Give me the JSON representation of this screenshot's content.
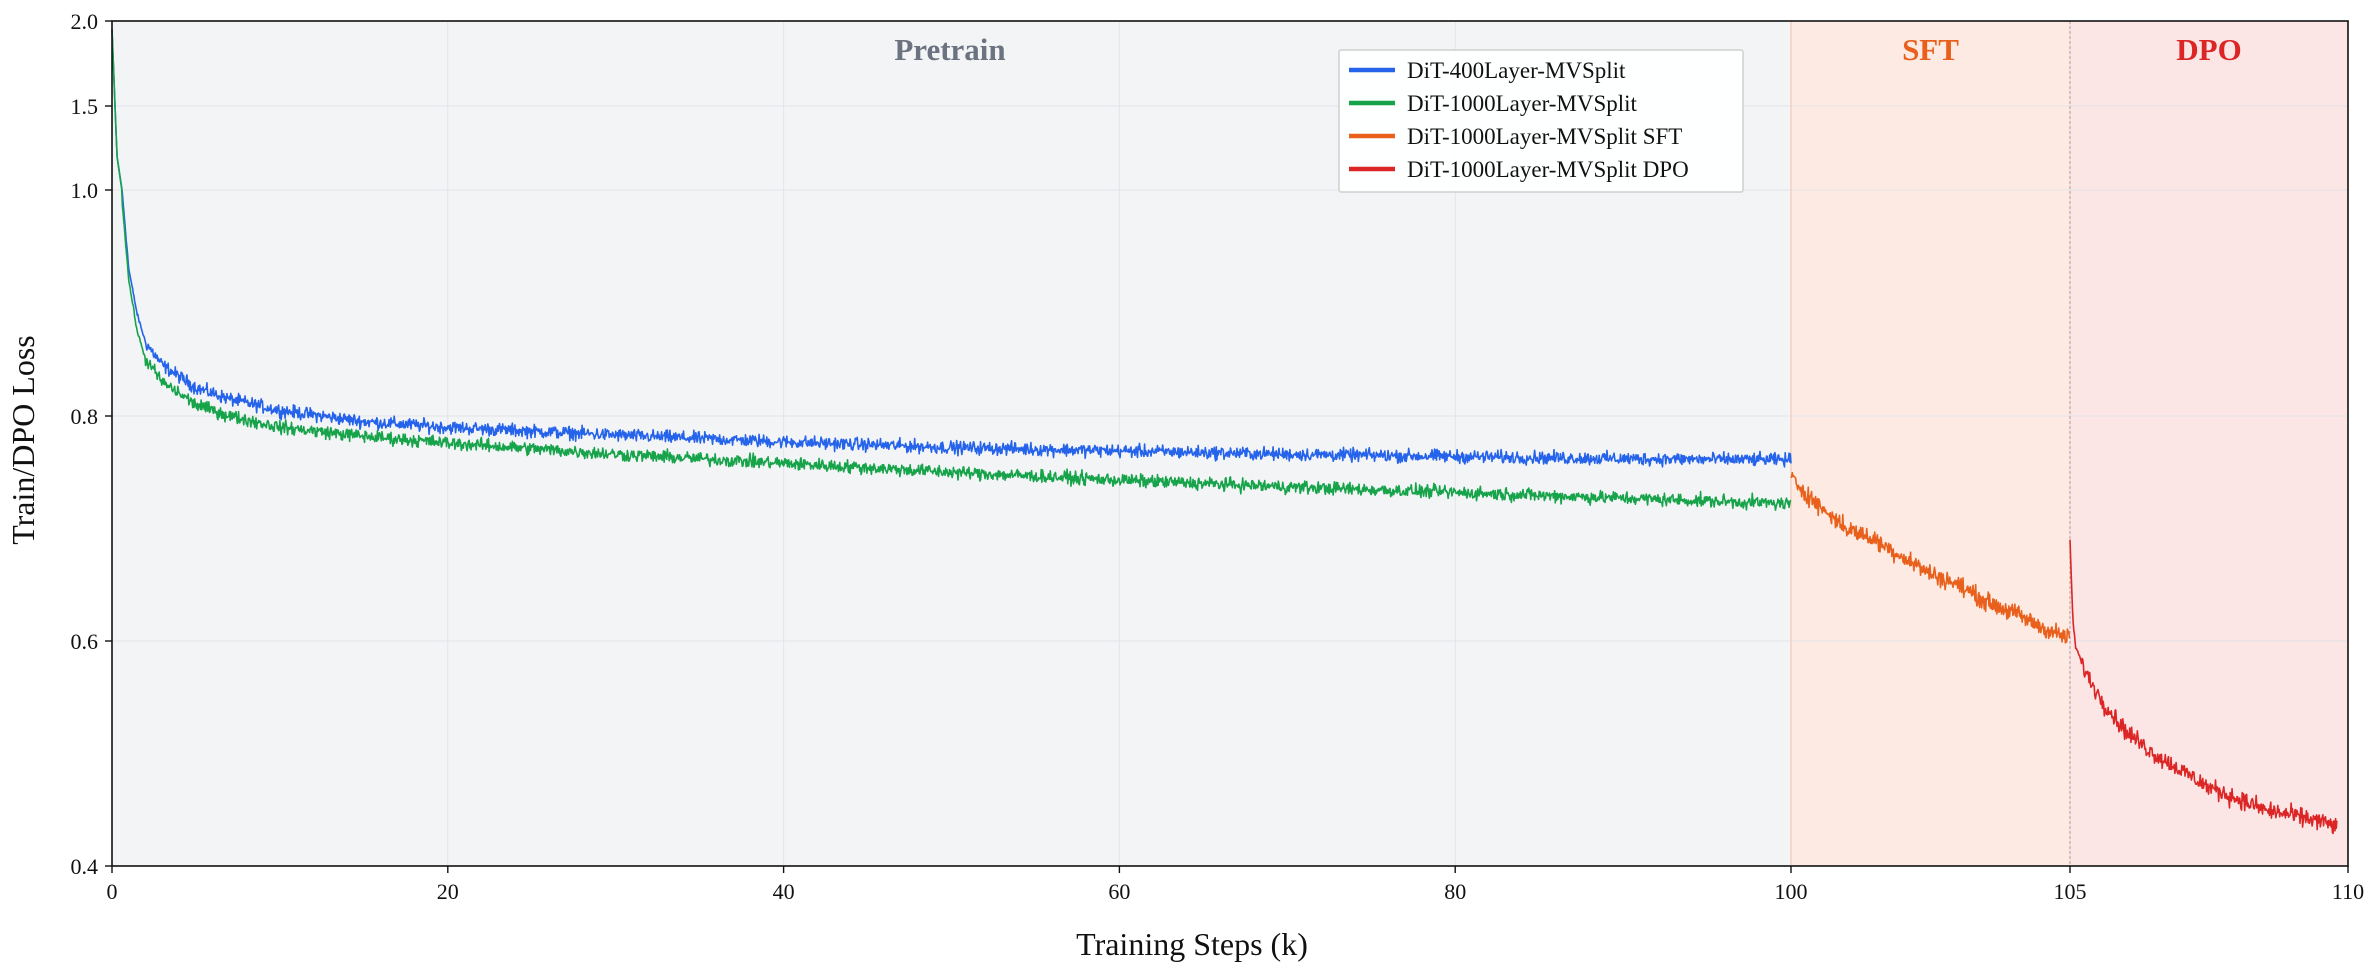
{
  "chart_data": {
    "type": "line",
    "title": "",
    "xlabel": "Training Steps (k)",
    "ylabel": "Train/DPO Loss",
    "x_ticks": [
      {
        "value": 0,
        "label": "0"
      },
      {
        "value": 20,
        "label": "20"
      },
      {
        "value": 40,
        "label": "40"
      },
      {
        "value": 60,
        "label": "60"
      },
      {
        "value": 80,
        "label": "80"
      },
      {
        "value": 100,
        "label": "100"
      },
      {
        "value": 105,
        "label": "105"
      },
      {
        "value": 110,
        "label": "110"
      }
    ],
    "y_ticks": [
      {
        "value": 0.4,
        "label": "0.4"
      },
      {
        "value": 0.6,
        "label": "0.6"
      },
      {
        "value": 0.8,
        "label": "0.8"
      },
      {
        "value": 1.0,
        "label": "1.0"
      },
      {
        "value": 1.5,
        "label": "1.5"
      },
      {
        "value": 2.0,
        "label": "2.0"
      }
    ],
    "ylim": [
      0.4,
      2.0
    ],
    "grid": true,
    "legend_position": "top-center",
    "phases": [
      {
        "name": "Pretrain",
        "range": [
          0,
          100
        ],
        "color": "#6b7280",
        "fill": "#f3f4f6"
      },
      {
        "name": "SFT",
        "range": [
          100,
          105
        ],
        "color": "#e8601c",
        "fill": "#fdebe3"
      },
      {
        "name": "DPO",
        "range": [
          105,
          110
        ],
        "color": "#dc2626",
        "fill": "#fbe5e5"
      }
    ],
    "series": [
      {
        "name": "DiT-400Layer-MVSplit",
        "color": "#2563eb",
        "x": [
          0,
          0.3,
          0.6,
          1,
          1.5,
          2,
          3,
          5,
          7,
          10,
          15,
          20,
          30,
          40,
          50,
          60,
          70,
          80,
          90,
          100
        ],
        "y": [
          1.95,
          1.2,
          1.0,
          0.93,
          0.89,
          0.865,
          0.845,
          0.825,
          0.815,
          0.805,
          0.795,
          0.79,
          0.783,
          0.777,
          0.772,
          0.769,
          0.766,
          0.764,
          0.762,
          0.761
        ]
      },
      {
        "name": "DiT-1000Layer-MVSplit",
        "color": "#16a34a",
        "x": [
          0,
          0.3,
          0.6,
          1,
          1.5,
          2,
          3,
          5,
          7,
          10,
          15,
          20,
          30,
          40,
          50,
          60,
          70,
          80,
          90,
          100
        ],
        "y": [
          1.95,
          1.2,
          0.99,
          0.92,
          0.875,
          0.85,
          0.83,
          0.81,
          0.8,
          0.79,
          0.782,
          0.776,
          0.766,
          0.758,
          0.75,
          0.743,
          0.737,
          0.732,
          0.727,
          0.722
        ]
      },
      {
        "name": "DiT-1000Layer-MVSplit SFT",
        "color": "#e8601c",
        "x": [
          100,
          100.5,
          101,
          101.5,
          102,
          102.5,
          103,
          103.5,
          104,
          104.5,
          105
        ],
        "y": [
          0.745,
          0.72,
          0.7,
          0.69,
          0.675,
          0.66,
          0.65,
          0.635,
          0.625,
          0.612,
          0.602
        ]
      },
      {
        "name": "DiT-1000Layer-MVSplit DPO",
        "color": "#dc2626",
        "x": [
          105,
          105.05,
          105.1,
          105.3,
          105.6,
          106,
          106.5,
          107,
          107.5,
          108,
          108.5,
          109,
          109.5,
          109.8
        ],
        "y": [
          0.69,
          0.62,
          0.595,
          0.57,
          0.545,
          0.52,
          0.5,
          0.485,
          0.47,
          0.46,
          0.45,
          0.445,
          0.44,
          0.435
        ]
      }
    ]
  }
}
